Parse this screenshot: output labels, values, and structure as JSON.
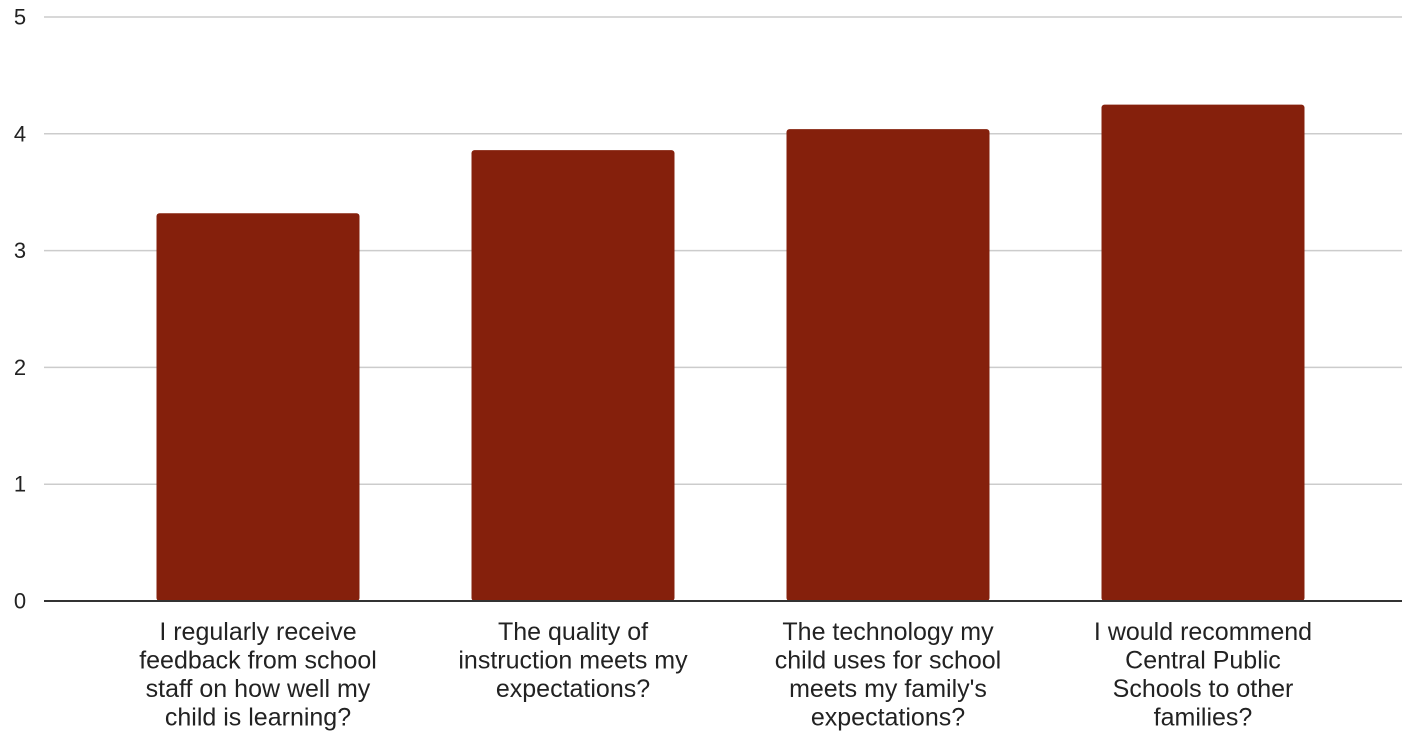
{
  "chart_data": {
    "type": "bar",
    "title": "",
    "xlabel": "",
    "ylabel": "",
    "categories": [
      "I regularly receive feedback from school staff on how well my child is learning?",
      "The quality of instruction meets my expectations?",
      "The technology my child uses for school meets my family's expectations?",
      "I would recommend Central Public Schools to other families?"
    ],
    "category_lines": [
      [
        "I regularly receive",
        "feedback from school",
        "staff on how well my",
        "child is learning?"
      ],
      [
        "The quality of",
        "instruction meets my",
        "expectations?"
      ],
      [
        "The technology my",
        "child uses for school",
        "meets my family's",
        "expectations?"
      ],
      [
        "I would recommend",
        "Central Public",
        "Schools to other",
        "families?"
      ]
    ],
    "values": [
      3.32,
      3.86,
      4.04,
      4.25
    ],
    "ylim": [
      0,
      5
    ],
    "yticks": [
      "0",
      "1",
      "2",
      "3",
      "4",
      "5"
    ],
    "grid": true,
    "legend": "none",
    "colors": {
      "bar": "#85200c",
      "grid": "#cccccc",
      "axis": "#333333",
      "text": "#222222"
    }
  }
}
